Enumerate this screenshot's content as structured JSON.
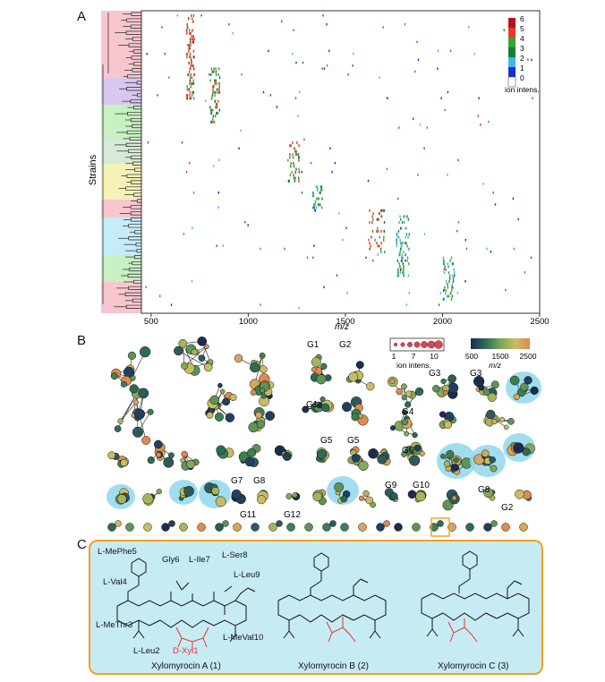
{
  "panelA": {
    "letter": "A",
    "y_label": "Strains",
    "x_label": "m/z",
    "x_ticks": [
      "500",
      "1000",
      "1500",
      "2000",
      "2500"
    ],
    "legend": {
      "levels": [
        "6",
        "5",
        "4",
        "3",
        "2",
        "1",
        "0"
      ],
      "colors": [
        "#b8111a",
        "#e23a2c",
        "#35a33a",
        "#1f7a3a",
        "#3fb7f0",
        "#1a2fd0",
        "#ffffff"
      ],
      "title": "ion intens."
    },
    "tree_clade_colors": [
      "#f7c6cf",
      "#d8c8ef",
      "#c9f0c3",
      "#d7ead8",
      "#f5f2b8",
      "#f7c6cf",
      "#c6ecf7",
      "#c9f0c3",
      "#f7c6cf"
    ]
  },
  "chart_data": {
    "type": "heatmap",
    "title": "",
    "xlabel": "m/z",
    "ylabel": "Strains",
    "xlim": [
      450,
      2500
    ],
    "x_ticks": [
      500,
      1000,
      1500,
      2000,
      2500
    ],
    "color_scale": {
      "min": 0,
      "max": 6,
      "label": "ion intens."
    },
    "clusters": [
      {
        "mz": [
          680,
          720
        ],
        "strains": [
          0,
          28
        ],
        "intensity": 5
      },
      {
        "mz": [
          800,
          850
        ],
        "strains": [
          18,
          36
        ],
        "intensity": 4
      },
      {
        "mz": [
          1200,
          1260
        ],
        "strains": [
          43,
          56
        ],
        "intensity": 4
      },
      {
        "mz": [
          1330,
          1380
        ],
        "strains": [
          58,
          66
        ],
        "intensity": 3
      },
      {
        "mz": [
          1620,
          1700
        ],
        "strains": [
          66,
          80
        ],
        "intensity": 4
      },
      {
        "mz": [
          1760,
          1830
        ],
        "strains": [
          68,
          88
        ],
        "intensity": 3
      },
      {
        "mz": [
          2000,
          2060
        ],
        "strains": [
          82,
          96
        ],
        "intensity": 3
      }
    ]
  },
  "panelB": {
    "letter": "B",
    "size_legend": {
      "values": [
        "1",
        "7",
        "10"
      ],
      "title": "ion intens."
    },
    "color_legend": {
      "ticks": [
        "500",
        "1500",
        "2500"
      ],
      "title": "m/z"
    },
    "group_labels": [
      "G1",
      "G2",
      "G1",
      "G3",
      "G3",
      "G4",
      "G5",
      "G5",
      "G6",
      "G7",
      "G8",
      "G9",
      "G10",
      "G8",
      "G2",
      "G11",
      "G12"
    ]
  },
  "panelC": {
    "letter": "C",
    "residues": {
      "mephe": "L-MePhe5",
      "gly": "Gly6",
      "ile": "L-Ile7",
      "ser": "L-Ser8",
      "val": "L-Val4",
      "leu9": "L-Leu9",
      "methr": "L-MeThr3",
      "leu2": "L-Leu2",
      "mevalten": "L-MeVal10",
      "xyl": "D-Xyl1"
    },
    "compounds": [
      "Xylomyrocin A (1)",
      "Xylomyrocin B (2)",
      "Xylomyrocin C (3)"
    ]
  }
}
